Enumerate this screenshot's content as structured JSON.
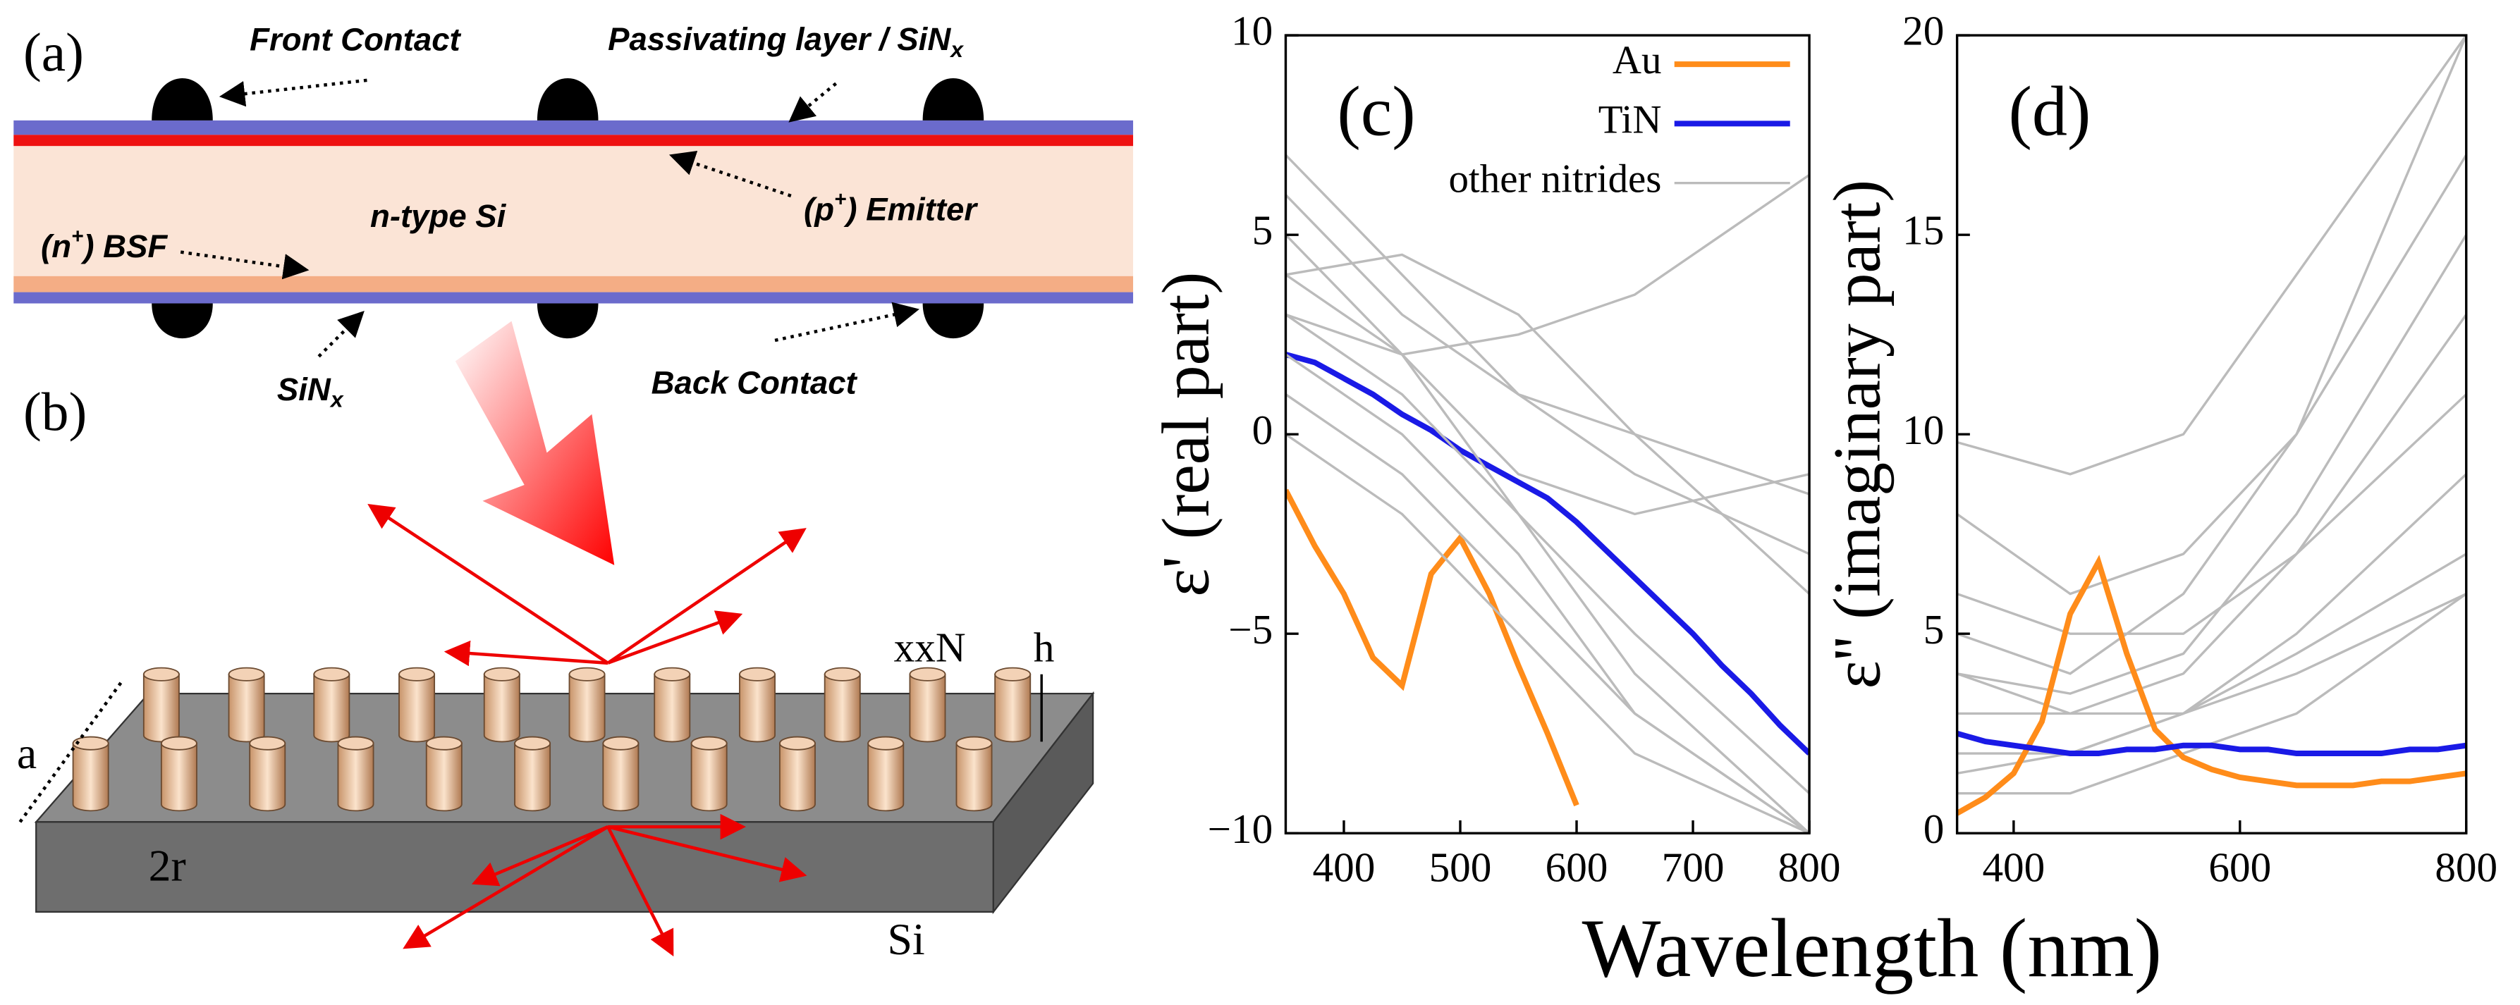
{
  "diagram": {
    "panel_a": "(a)",
    "panel_b": "(b)",
    "front_contact": "Front Contact",
    "passivating": {
      "main": "Passivating layer / SiN",
      "sub": "x"
    },
    "n_type": "n-type Si",
    "bsf": {
      "pre": "(n",
      "sup": "+",
      "post": ") BSF"
    },
    "emitter": {
      "pre": "(p",
      "sup": "+",
      "post": ") Emitter"
    },
    "sinx": {
      "main": "SiN",
      "sub": "x"
    },
    "back_contact": "Back Contact",
    "xxn": "xxN",
    "h": "h",
    "a": "a",
    "r": "2r",
    "si": "Si"
  },
  "chart_data": [
    {
      "type": "line",
      "panel": "(c)",
      "ylabel": "ε' (real part)",
      "xlabel": "Wavelength (nm)",
      "legend": "upper right",
      "x": [
        350,
        375,
        400,
        425,
        450,
        475,
        500,
        525,
        550,
        575,
        600,
        625,
        650,
        675,
        700,
        725,
        750,
        775,
        800
      ],
      "xlim": [
        350,
        800
      ],
      "xticks": [
        400,
        500,
        600,
        700,
        800
      ],
      "ylim": [
        -10,
        10
      ],
      "yticks": [
        {
          "value": -10,
          "label": "−10"
        },
        {
          "value": -5,
          "label": "−5"
        },
        0,
        5,
        10
      ],
      "series": [
        {
          "name": "Au",
          "color": "#ff8c1a",
          "values": [
            -1.4,
            -2.8,
            -4.0,
            -5.6,
            -6.3,
            -3.5,
            -2.6,
            -4.0,
            -5.8,
            -7.5,
            -9.3,
            null,
            null,
            null,
            null,
            null,
            null,
            null,
            null
          ]
        },
        {
          "name": "TiN",
          "color": "#1a1ae6",
          "values": [
            2.0,
            1.8,
            1.4,
            1.0,
            0.5,
            0.1,
            -0.4,
            -0.8,
            -1.2,
            -1.6,
            -2.2,
            -2.9,
            -3.6,
            -4.3,
            -5.0,
            -5.8,
            -6.5,
            -7.3,
            -8.0
          ]
        },
        {
          "name": "other nitrides",
          "color": "#bbbbbb",
          "x": [
            350,
            450,
            550,
            650,
            800
          ],
          "values": [
            7,
            4,
            1,
            -1,
            -3
          ]
        },
        {
          "color": "#bbbbbb",
          "x": [
            350,
            450,
            550,
            650,
            800
          ],
          "values": [
            3,
            1,
            -2,
            -5,
            -9
          ]
        },
        {
          "color": "#bbbbbb",
          "x": [
            350,
            450,
            550,
            650,
            800
          ],
          "values": [
            4,
            4.5,
            3,
            0,
            -4
          ]
        },
        {
          "color": "#bbbbbb",
          "x": [
            350,
            450,
            550,
            650,
            800
          ],
          "values": [
            1,
            -1,
            -4,
            -7,
            -10
          ]
        },
        {
          "color": "#bbbbbb",
          "x": [
            350,
            450,
            550,
            650,
            800
          ],
          "values": [
            5,
            2,
            -1,
            -2,
            -1
          ]
        },
        {
          "color": "#bbbbbb",
          "x": [
            350,
            450,
            550,
            650,
            800
          ],
          "values": [
            2,
            0,
            -3,
            -7,
            -10
          ]
        },
        {
          "color": "#bbbbbb",
          "x": [
            350,
            450,
            550,
            650,
            800
          ],
          "values": [
            3,
            2,
            2.5,
            3.5,
            6.5
          ]
        },
        {
          "color": "#bbbbbb",
          "x": [
            350,
            450,
            550,
            650,
            800
          ],
          "values": [
            6,
            3,
            1,
            0,
            -1.5
          ]
        },
        {
          "color": "#bbbbbb",
          "x": [
            350,
            450,
            550,
            650,
            800
          ],
          "values": [
            0,
            -2,
            -5,
            -8,
            -10
          ]
        },
        {
          "color": "#bbbbbb",
          "x": [
            350,
            450,
            550,
            650,
            800
          ],
          "values": [
            4,
            2,
            -2,
            -6,
            -10
          ]
        }
      ]
    },
    {
      "type": "line",
      "panel": "(d)",
      "ylabel": "ε'' (imaginary part)",
      "x": [
        350,
        375,
        400,
        425,
        450,
        475,
        500,
        525,
        550,
        575,
        600,
        625,
        650,
        675,
        700,
        725,
        750,
        775,
        800
      ],
      "xlim": [
        350,
        800
      ],
      "xticks": [
        400,
        600,
        800
      ],
      "ylim": [
        0,
        20
      ],
      "yticks": [
        0,
        5,
        10,
        15,
        20
      ],
      "series": [
        {
          "color": "#bbbbbb",
          "x": [
            350,
            450,
            550,
            650,
            800
          ],
          "values": [
            4,
            3,
            3,
            4,
            6
          ]
        },
        {
          "color": "#bbbbbb",
          "x": [
            350,
            450,
            550,
            650,
            800
          ],
          "values": [
            2,
            2,
            3,
            5,
            9
          ]
        },
        {
          "color": "#bbbbbb",
          "x": [
            350,
            450,
            550,
            650,
            800
          ],
          "values": [
            8,
            6,
            7,
            10,
            17
          ]
        },
        {
          "color": "#bbbbbb",
          "x": [
            350,
            450,
            550,
            650,
            800
          ],
          "values": [
            5,
            4,
            6,
            10,
            20
          ]
        },
        {
          "color": "#bbbbbb",
          "x": [
            350,
            450,
            550,
            650,
            800
          ],
          "values": [
            1,
            1,
            2,
            3,
            6
          ]
        },
        {
          "color": "#bbbbbb",
          "x": [
            350,
            450,
            550,
            650,
            800
          ],
          "values": [
            3,
            3,
            4,
            7,
            13
          ]
        },
        {
          "color": "#bbbbbb",
          "x": [
            350,
            450,
            550,
            650,
            800
          ],
          "values": [
            9.8,
            9,
            10,
            14,
            20
          ]
        },
        {
          "color": "#bbbbbb",
          "x": [
            350,
            450,
            550,
            650,
            800
          ],
          "values": [
            6,
            5,
            5,
            7,
            11
          ]
        },
        {
          "color": "#bbbbbb",
          "x": [
            350,
            450,
            550,
            650,
            800
          ],
          "values": [
            1.5,
            2,
            3,
            4.5,
            7
          ]
        },
        {
          "color": "#bbbbbb",
          "x": [
            350,
            450,
            550,
            650,
            800
          ],
          "values": [
            4,
            3.5,
            4.5,
            8,
            15
          ]
        },
        {
          "color": "#ff8c1a",
          "values": [
            0.5,
            0.9,
            1.5,
            2.8,
            5.5,
            6.8,
            4.5,
            2.6,
            1.9,
            1.6,
            1.4,
            1.3,
            1.2,
            1.2,
            1.2,
            1.3,
            1.3,
            1.4,
            1.5
          ]
        },
        {
          "color": "#1a1ae6",
          "values": [
            2.5,
            2.3,
            2.2,
            2.1,
            2.0,
            2.0,
            2.1,
            2.1,
            2.2,
            2.2,
            2.1,
            2.1,
            2.0,
            2.0,
            2.0,
            2.0,
            2.1,
            2.1,
            2.2
          ]
        }
      ]
    }
  ]
}
